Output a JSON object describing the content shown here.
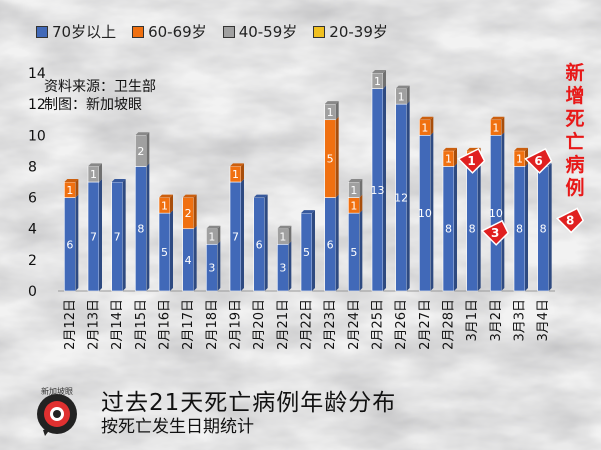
{
  "chart_data": {
    "type": "bar",
    "stacked": true,
    "categories": [
      "2月12日",
      "2月13日",
      "2月14日",
      "2月15日",
      "2月16日",
      "2月17日",
      "2月18日",
      "2月19日",
      "2月20日",
      "2月21日",
      "2月22日",
      "2月23日",
      "2月24日",
      "2月25日",
      "2月26日",
      "2月27日",
      "2月28日",
      "3月1日",
      "3月2日",
      "3月3日",
      "3月4日"
    ],
    "series": [
      {
        "name": "70岁以上",
        "color": "#4169b8",
        "values": [
          6,
          7,
          7,
          8,
          5,
          4,
          3,
          7,
          6,
          3,
          5,
          6,
          5,
          13,
          12,
          10,
          8,
          8,
          10,
          8,
          8
        ]
      },
      {
        "name": "60-69岁",
        "color": "#f07010",
        "values": [
          1,
          0,
          0,
          0,
          1,
          2,
          0,
          1,
          0,
          0,
          0,
          5,
          1,
          0,
          0,
          1,
          1,
          1,
          1,
          1,
          0
        ]
      },
      {
        "name": "40-59岁",
        "color": "#a0a0a0",
        "values": [
          0,
          1,
          0,
          2,
          0,
          0,
          1,
          0,
          0,
          1,
          0,
          1,
          1,
          1,
          1,
          0,
          0,
          0,
          0,
          0,
          0
        ]
      },
      {
        "name": "20-39岁",
        "color": "#f0c020",
        "values": [
          0,
          0,
          0,
          0,
          0,
          0,
          0,
          0,
          0,
          0,
          0,
          0,
          0,
          0,
          0,
          0,
          0,
          0,
          0,
          0,
          0
        ]
      }
    ],
    "ylim": [
      0,
      14
    ],
    "yticks": [
      0,
      2,
      4,
      6,
      8,
      10,
      12,
      14
    ],
    "legend_position": "top",
    "annotations": [
      {
        "category": "2月28日",
        "text": "1"
      },
      {
        "category": "3月1日",
        "text": "3"
      },
      {
        "category": "3月3日",
        "text": "6"
      },
      {
        "category": "3月4日",
        "text": "8"
      }
    ]
  },
  "source_lines": [
    "资料来源：卫生部",
    "制图：新加坡眼"
  ],
  "side_label": "新增死亡病例",
  "title": "过去21天死亡病例年龄分布",
  "subtitle": "按死亡发生日期统计",
  "logo_text": "新加坡眼"
}
